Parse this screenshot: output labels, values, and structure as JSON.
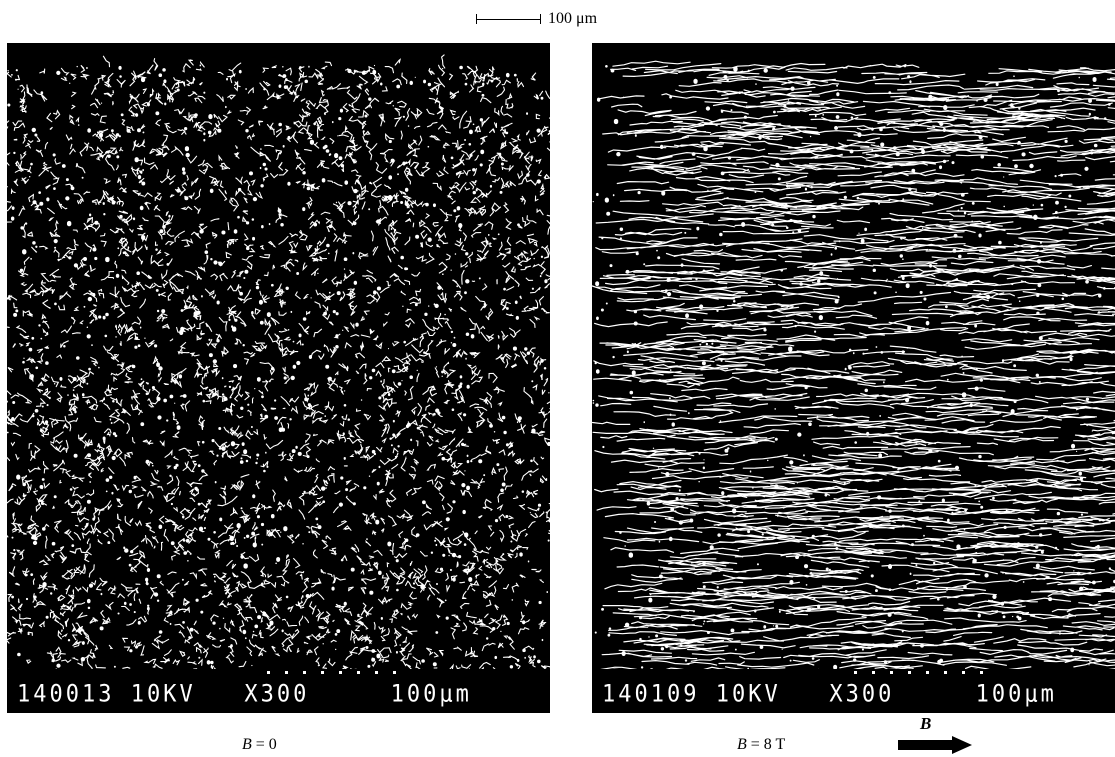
{
  "scale_bar": {
    "label": "100 μm"
  },
  "panels": {
    "left": {
      "infobar_text": "140013 10KV   X300     100μm",
      "caption_var": "B",
      "caption_rest": " = 0"
    },
    "right": {
      "infobar_text": "140109 10KV   X300     100μm",
      "caption_var": "B",
      "caption_rest": " = 8 T"
    }
  },
  "field_arrow": {
    "label": "B"
  },
  "colors": {
    "background": "#ffffff",
    "micrograph_bg": "#000000",
    "features": "#ffffff"
  }
}
